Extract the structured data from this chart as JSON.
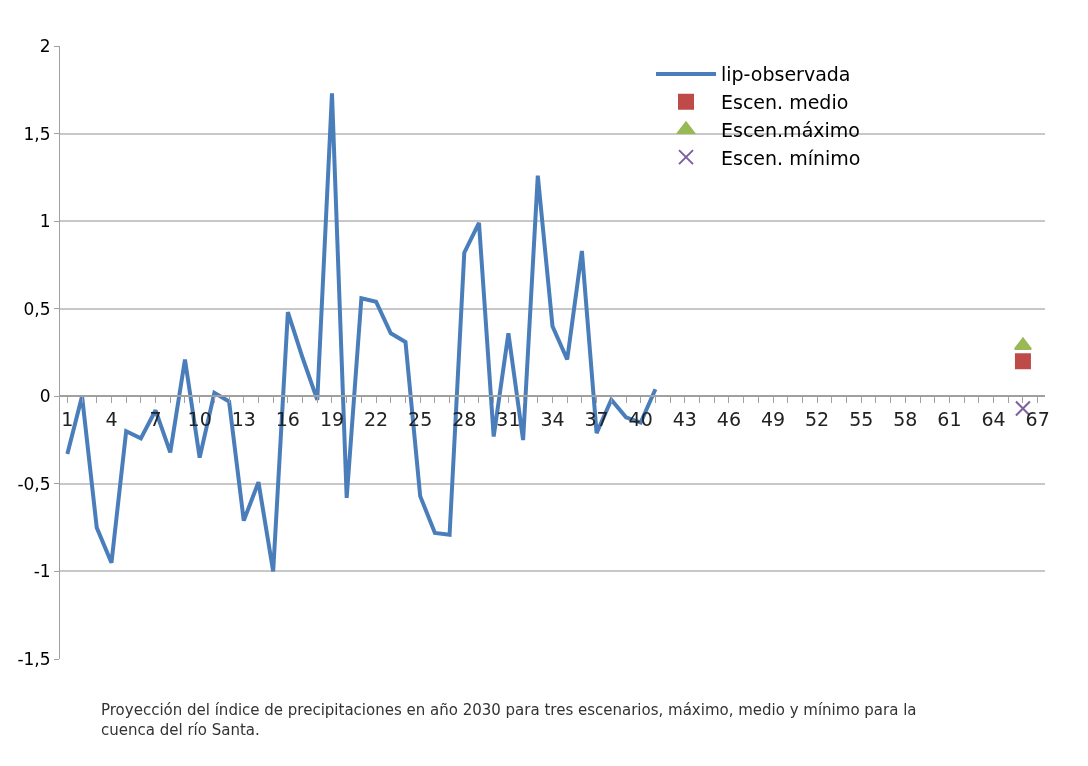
{
  "chart_data": {
    "type": "line",
    "categories": [
      "1",
      null,
      null,
      "4",
      null,
      null,
      "7",
      null,
      null,
      "10",
      null,
      null,
      "13",
      null,
      null,
      "16",
      null,
      null,
      "19",
      null,
      null,
      "22",
      null,
      null,
      "25",
      null,
      null,
      "28",
      null,
      null,
      "31",
      null,
      null,
      "34",
      null,
      null,
      "37",
      null,
      null,
      "40",
      null,
      null,
      "43",
      null,
      null,
      "46",
      null,
      null,
      "49",
      null,
      null,
      "52",
      null,
      null,
      "55",
      null,
      null,
      "58",
      null,
      null,
      "61",
      null,
      null,
      "64",
      null,
      null,
      "67"
    ],
    "series": [
      {
        "name": "lip-observada",
        "color": "#4a7ebb",
        "marker": "none",
        "values": [
          -0.33,
          0,
          -0.75,
          -0.95,
          -0.2,
          -0.24,
          -0.08,
          -0.32,
          0.21,
          -0.35,
          0.02,
          -0.03,
          -0.71,
          -0.49,
          -1.0,
          0.48,
          0.22,
          -0.02,
          1.73,
          -0.58,
          0.56,
          0.54,
          0.36,
          0.31,
          -0.57,
          -0.78,
          -0.79,
          0.82,
          0.99,
          -0.23,
          0.36,
          -0.25,
          1.26,
          0.4,
          0.21,
          0.83,
          -0.21,
          -0.02,
          -0.12,
          -0.15,
          0.04,
          null,
          null,
          null,
          null,
          null,
          null,
          null,
          null,
          null,
          null,
          null,
          null,
          null,
          null,
          null,
          null,
          null,
          null,
          null,
          null,
          null,
          null,
          null,
          null,
          null,
          null
        ]
      },
      {
        "name": "Escen. medio",
        "color": "#be4b48",
        "marker": "square",
        "values": [
          null,
          null,
          null,
          null,
          null,
          null,
          null,
          null,
          null,
          null,
          null,
          null,
          null,
          null,
          null,
          null,
          null,
          null,
          null,
          null,
          null,
          null,
          null,
          null,
          null,
          null,
          null,
          null,
          null,
          null,
          null,
          null,
          null,
          null,
          null,
          null,
          null,
          null,
          null,
          null,
          null,
          null,
          null,
          null,
          null,
          null,
          null,
          null,
          null,
          null,
          null,
          null,
          null,
          null,
          null,
          null,
          null,
          null,
          null,
          null,
          null,
          null,
          null,
          null,
          null,
          0.2,
          null
        ]
      },
      {
        "name": "Escen.máximo",
        "color": "#98b954",
        "marker": "triangle",
        "values": [
          null,
          null,
          null,
          null,
          null,
          null,
          null,
          null,
          null,
          null,
          null,
          null,
          null,
          null,
          null,
          null,
          null,
          null,
          null,
          null,
          null,
          null,
          null,
          null,
          null,
          null,
          null,
          null,
          null,
          null,
          null,
          null,
          null,
          null,
          null,
          null,
          null,
          null,
          null,
          null,
          null,
          null,
          null,
          null,
          null,
          null,
          null,
          null,
          null,
          null,
          null,
          null,
          null,
          null,
          null,
          null,
          null,
          null,
          null,
          null,
          null,
          null,
          null,
          null,
          null,
          0.29,
          null
        ]
      },
      {
        "name": "Escen. mínimo",
        "color": "#7d60a0",
        "marker": "cross",
        "values": [
          null,
          null,
          null,
          null,
          null,
          null,
          null,
          null,
          null,
          null,
          null,
          null,
          null,
          null,
          null,
          null,
          null,
          null,
          null,
          null,
          null,
          null,
          null,
          null,
          null,
          null,
          null,
          null,
          null,
          null,
          null,
          null,
          null,
          null,
          null,
          null,
          null,
          null,
          null,
          null,
          null,
          null,
          null,
          null,
          null,
          null,
          null,
          null,
          null,
          null,
          null,
          null,
          null,
          null,
          null,
          null,
          null,
          null,
          null,
          null,
          null,
          null,
          null,
          null,
          null,
          -0.07,
          null
        ]
      }
    ],
    "ylim": [
      -1.5,
      2
    ],
    "yticks": [
      {
        "value": -1.5,
        "label": "-1,5"
      },
      -1,
      {
        "value": -0.5,
        "label": "-0,5"
      },
      0,
      {
        "value": 0.5,
        "label": "0,5"
      },
      1,
      {
        "value": 1.5,
        "label": "1,5"
      },
      2
    ],
    "grid": "y",
    "legend": "top right",
    "annotations": [
      "Proyección del índice de precipitaciones en año 2030 para tres escenarios, máximo, medio y mínimo para la cuenca del río Santa."
    ]
  }
}
